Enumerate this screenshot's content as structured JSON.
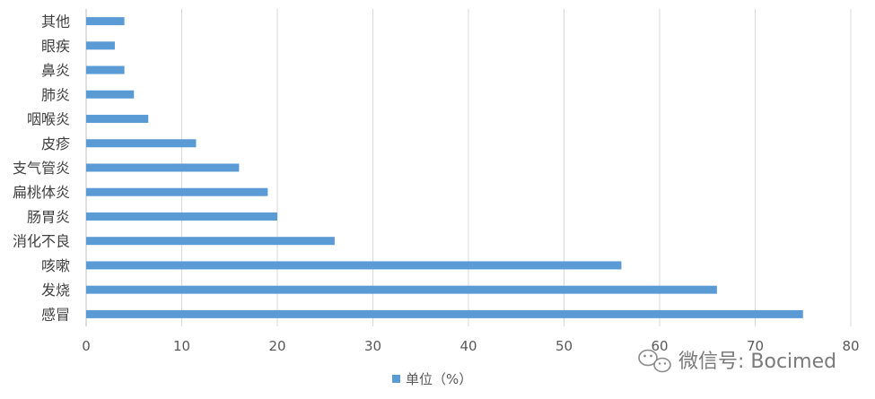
{
  "chart_data": {
    "type": "bar",
    "orientation": "horizontal",
    "categories": [
      "感冒",
      "发烧",
      "咳嗽",
      "消化不良",
      "肠胃炎",
      "扁桃体炎",
      "支气管炎",
      "皮疹",
      "咽喉炎",
      "肺炎",
      "鼻炎",
      "眼疾",
      "其他"
    ],
    "series": [
      {
        "name": "单位（%）",
        "values": [
          75,
          66,
          56,
          26,
          20,
          19,
          16,
          11.5,
          6.5,
          5,
          4,
          3,
          4
        ]
      }
    ],
    "xlim": [
      0,
      80
    ],
    "xticks": [
      0,
      10,
      20,
      30,
      40,
      50,
      60,
      70,
      80
    ],
    "grid": true,
    "legend_position": "bottom",
    "colors": {
      "bar": "#5b9bd5",
      "grid": "#d9d9d9",
      "axis": "#bfbfbf",
      "text": "#404040"
    }
  },
  "watermark": {
    "icon": "wechat-icon",
    "text": "微信号: Bocimed"
  }
}
